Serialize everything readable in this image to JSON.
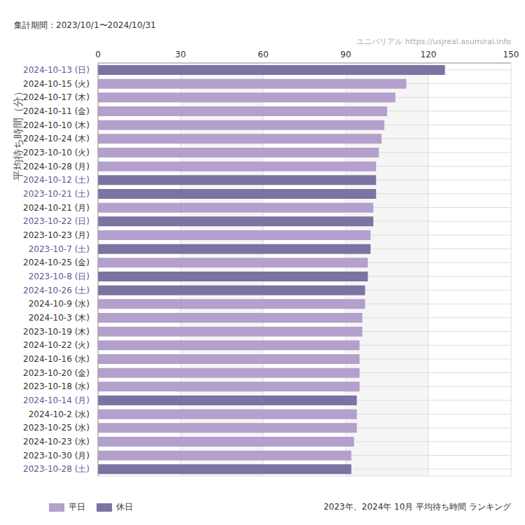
{
  "chart_data": {
    "type": "bar",
    "orientation": "horizontal",
    "stacked": true,
    "grid": true,
    "legend": "bottom left",
    "title": "2023年、2024年 10月 平均待ち時間 ランキング",
    "subtitle": "集計期間：2023/10/1〜2024/10/31",
    "annotations": [
      "ユニバリアル  https://usjreal.asumirai.info"
    ],
    "ylabel": "平均待ち時間（分）",
    "xlim": [
      0,
      150
    ],
    "xticks": [
      0,
      30,
      60,
      90,
      120,
      150
    ],
    "categories": [
      "2024-10-13 (日)",
      "2024-10-15 (火)",
      "2024-10-17 (木)",
      "2024-10-11 (金)",
      "2024-10-10 (木)",
      "2024-10-24 (木)",
      "2023-10-10 (火)",
      "2024-10-28 (月)",
      "2024-10-12 (土)",
      "2023-10-21 (土)",
      "2024-10-21 (月)",
      "2023-10-22 (日)",
      "2023-10-23 (月)",
      "2023-10-7 (土)",
      "2024-10-25 (金)",
      "2023-10-8 (日)",
      "2024-10-26 (土)",
      "2024-10-9 (水)",
      "2024-10-3 (木)",
      "2023-10-19 (木)",
      "2024-10-22 (火)",
      "2024-10-16 (水)",
      "2023-10-20 (金)",
      "2023-10-18 (水)",
      "2024-10-14 (月)",
      "2024-10-2 (水)",
      "2023-10-25 (水)",
      "2024-10-23 (水)",
      "2023-10-30 (月)",
      "2023-10-28 (土)"
    ],
    "series": [
      {
        "name": "平日",
        "color": "#b3a0cc",
        "values": [
          null,
          112,
          108,
          105,
          104,
          103,
          102,
          101,
          null,
          null,
          100,
          null,
          99,
          null,
          98,
          null,
          null,
          97,
          96,
          96,
          95,
          95,
          95,
          95,
          null,
          94,
          94,
          93,
          92,
          null
        ]
      },
      {
        "name": "休日",
        "color": "#7b73a2",
        "values": [
          126,
          null,
          null,
          null,
          null,
          null,
          null,
          null,
          101,
          101,
          null,
          100,
          null,
          99,
          null,
          98,
          97,
          null,
          null,
          null,
          null,
          null,
          null,
          null,
          94,
          null,
          null,
          null,
          null,
          92
        ]
      }
    ]
  }
}
